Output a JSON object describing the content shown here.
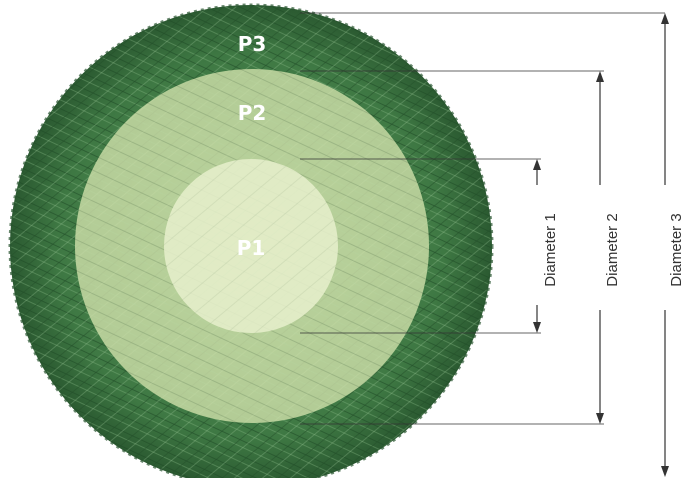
{
  "zones": [
    {
      "label": "P1"
    },
    {
      "label": "P2"
    },
    {
      "label": "P3"
    }
  ],
  "dimensions": [
    {
      "label": "Diameter 1"
    },
    {
      "label": "Diameter 2"
    },
    {
      "label": "Diameter 3"
    }
  ],
  "colors": {
    "outer_grass": "#3f7a44",
    "outer_grass_dark": "#2c5a31",
    "p2_fill": "#cfe0a8",
    "p1_fill": "#e6efc8",
    "lines": "#333333"
  }
}
